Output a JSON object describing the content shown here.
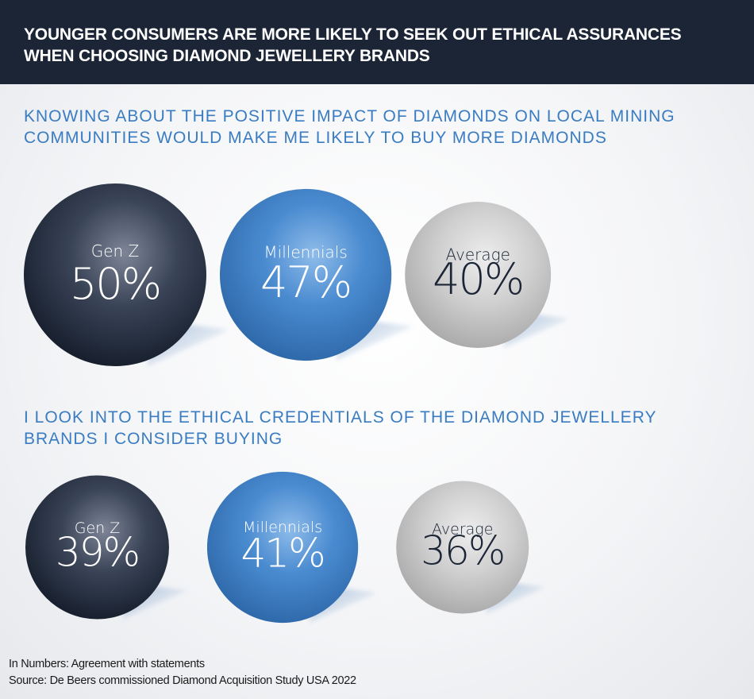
{
  "header": {
    "title": "YOUNGER CONSUMERS ARE MORE LIKELY TO SEEK OUT ETHICAL ASSURANCES WHEN CHOOSING DIAMOND JEWELLERY BRANDS"
  },
  "footer": {
    "line1": "In Numbers: Agreement with statements",
    "line2": "Source: De Beers commissioned Diamond Acquisition Study USA 2022"
  },
  "colors": {
    "genz": "#1b2536",
    "millennials": "#3a7cc1",
    "average": "#bfbfbf"
  },
  "chart_data": [
    {
      "type": "bubble",
      "title": "KNOWING ABOUT THE POSITIVE IMPACT OF DIAMONDS ON LOCAL MINING COMMUNITIES WOULD MAKE ME LIKELY TO BUY MORE DIAMONDS",
      "unit": "%",
      "categories": [
        "Gen Z",
        "Millennials",
        "Average"
      ],
      "values": [
        50,
        47,
        40
      ],
      "labels": [
        "50%",
        "47%",
        "40%"
      ]
    },
    {
      "type": "bubble",
      "title": "I LOOK INTO THE ETHICAL CREDENTIALS OF THE DIAMOND JEWELLERY BRANDS I CONSIDER BUYING",
      "unit": "%",
      "categories": [
        "Gen Z",
        "Millennials",
        "Average"
      ],
      "values": [
        39,
        41,
        36
      ],
      "labels": [
        "39%",
        "41%",
        "36%"
      ]
    }
  ]
}
